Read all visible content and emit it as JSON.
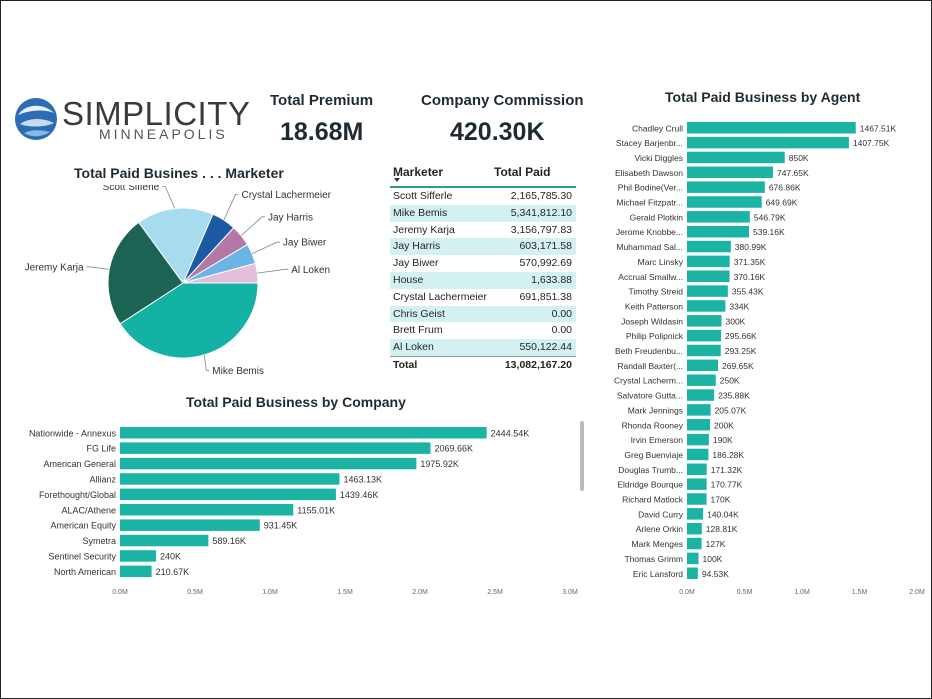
{
  "brand": {
    "name": "SIMPLICITY",
    "city": "MINNEAPOLIS"
  },
  "kpis": {
    "total_premium": {
      "label": "Total Premium",
      "value": "18.68M"
    },
    "company_commission": {
      "label": "Company Commission",
      "value": "420.30K"
    }
  },
  "table": {
    "headers": {
      "marketer": "Marketer",
      "total_paid": "Total Paid"
    },
    "rows": [
      {
        "name": "Scott Sifferle",
        "value": "2,165,785.30"
      },
      {
        "name": "Mike Bemis",
        "value": "5,341,812.10"
      },
      {
        "name": "Jeremy Karja",
        "value": "3,156,797.83"
      },
      {
        "name": "Jay Harris",
        "value": "603,171.58"
      },
      {
        "name": "Jay Biwer",
        "value": "570,992.69"
      },
      {
        "name": "House",
        "value": "1,633.88"
      },
      {
        "name": "Crystal Lachermeier",
        "value": "691,851.38"
      },
      {
        "name": "Chris Geist",
        "value": "0.00"
      },
      {
        "name": "Brett Frum",
        "value": "0.00"
      },
      {
        "name": "Al Loken",
        "value": "550,122.44"
      }
    ],
    "total": {
      "name": "Total",
      "value": "13,082,167.20"
    }
  },
  "colors": {
    "bar": "#1bb3a4",
    "title": "#1f2b33",
    "alt_row": "#d4f1f2"
  },
  "chart_data": [
    {
      "type": "pie",
      "title": "Total Paid Busines . . . Marketer",
      "slices": [
        {
          "label": "Mike Bemis",
          "value": 5341812.1,
          "color": "#14b2a4"
        },
        {
          "label": "Jeremy Karja",
          "value": 3156797.83,
          "color": "#1d6353"
        },
        {
          "label": "Scott Sifferle",
          "value": 2165785.3,
          "color": "#a7dcef"
        },
        {
          "label": "Crystal Lachermeier",
          "value": 691851.38,
          "color": "#1d5aa6"
        },
        {
          "label": "Jay Harris",
          "value": 603171.58,
          "color": "#b279a6"
        },
        {
          "label": "Jay Biwer",
          "value": 570992.69,
          "color": "#6cb4e6"
        },
        {
          "label": "Al Loken",
          "value": 550122.44,
          "color": "#e3bfd9"
        }
      ]
    },
    {
      "type": "bar",
      "orientation": "horizontal",
      "title": "Total Paid Business by Company",
      "categories": [
        "Nationwide - Annexus",
        "FG Life",
        "American General",
        "Allianz",
        "Forethought/Global",
        "ALAC/Athene",
        "American Equity",
        "Symetra",
        "Sentinel Security",
        "North American"
      ],
      "values": [
        2444540,
        2069660,
        1975920,
        1463130,
        1439460,
        1155010,
        931450,
        589160,
        240000,
        210670
      ],
      "labels": [
        "2444.54K",
        "2069.66K",
        "1975.92K",
        "1463.13K",
        "1439.46K",
        "1155.01K",
        "931.45K",
        "589.16K",
        "240K",
        "210.67K"
      ],
      "xlim": [
        0,
        3000000
      ],
      "ticks": [
        "0.0M",
        "0.5M",
        "1.0M",
        "1.5M",
        "2.0M",
        "2.5M",
        "3.0M"
      ]
    },
    {
      "type": "bar",
      "orientation": "horizontal",
      "title": "Total Paid Business by Agent",
      "categories": [
        "Chadley Crull",
        "Stacey Barjenbr...",
        "Vicki Diggles",
        "Elisabeth Dawson",
        "Phil Bodine(Ver...",
        "Michael Fitzpatr...",
        "Gerald Plotkin",
        "Jerome Knobbe...",
        "Muhammad Sal...",
        "Marc Linsky",
        "Accrual Smallw...",
        "Timothy Streid",
        "Keith Patterson",
        "Joseph Wildasin",
        "Philip Polipnick",
        "Beth Freudenbu...",
        "Randall Baxter(...",
        "Crystal Lacherm...",
        "Salvatore Gutta...",
        "Mark Jennings",
        "Rhonda Rooney",
        "Irvin Emerson",
        "Greg Buenviaje",
        "Douglas Trumb...",
        "Eldridge Bourque",
        "Richard Matlock",
        "David Curry",
        "Arlene Orkin",
        "Mark Menges",
        "Thomas Grimm",
        "Eric Lansford"
      ],
      "values": [
        1467510,
        1407750,
        850000,
        747650,
        676860,
        649690,
        546790,
        539160,
        380990,
        371350,
        370160,
        355430,
        334000,
        300000,
        295660,
        293250,
        269650,
        250000,
        235880,
        205070,
        200000,
        190000,
        186280,
        171320,
        170770,
        170000,
        140040,
        128810,
        127000,
        100000,
        94530
      ],
      "labels": [
        "1467.51K",
        "1407.75K",
        "850K",
        "747.65K",
        "676.86K",
        "649.69K",
        "546.79K",
        "539.16K",
        "380.99K",
        "371.35K",
        "370.16K",
        "355.43K",
        "334K",
        "300K",
        "295.66K",
        "293.25K",
        "269.65K",
        "250K",
        "235.88K",
        "205.07K",
        "200K",
        "190K",
        "186.28K",
        "171.32K",
        "170.77K",
        "170K",
        "140.04K",
        "128.81K",
        "127K",
        "100K",
        "94.53K"
      ],
      "xlim": [
        0,
        2000000
      ],
      "ticks": [
        "0.0M",
        "0.5M",
        "1.0M",
        "1.5M",
        "2.0M"
      ]
    }
  ]
}
